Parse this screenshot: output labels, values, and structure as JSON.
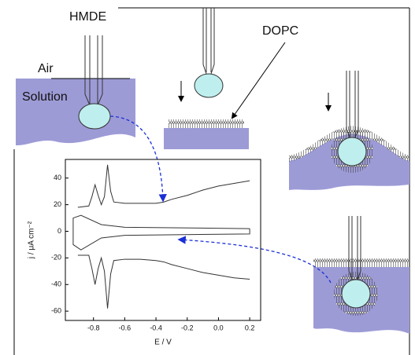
{
  "schematic": {
    "labels": [
      "HMDE",
      "Air",
      "Solution",
      "DOPC"
    ]
  },
  "chart_data": {
    "type": "line",
    "xlabel": "E / V",
    "ylabel": "j / μA cm⁻²",
    "xlim": [
      -0.98,
      0.27
    ],
    "ylim": [
      -67,
      54
    ],
    "xticks": [
      -0.8,
      -0.6,
      -0.4,
      -0.2,
      {
        "value": 0,
        "label": "0.0"
      },
      0.2
    ],
    "yticks": [
      40,
      20,
      0,
      -20,
      -40,
      -60
    ],
    "series": [
      {
        "color": "#333333",
        "x": [
          -0.9,
          -0.83,
          -0.81,
          -0.79,
          -0.77,
          -0.75,
          -0.73,
          -0.71,
          -0.69,
          -0.67,
          -0.6,
          -0.5,
          -0.4,
          -0.35,
          -0.3,
          -0.2,
          -0.1,
          0.0,
          0.1,
          0.2
        ],
        "values": [
          18,
          19,
          26,
          35,
          27,
          20,
          26,
          50,
          30,
          22,
          21,
          21,
          21,
          22,
          24,
          27,
          31,
          34,
          36,
          38
        ]
      },
      {
        "color": "#333333",
        "x": [
          -0.9,
          -0.83,
          -0.81,
          -0.79,
          -0.77,
          -0.75,
          -0.73,
          -0.71,
          -0.69,
          -0.67,
          -0.6,
          -0.5,
          -0.4,
          -0.35,
          -0.3,
          -0.2,
          -0.1,
          0.0,
          0.1,
          0.2
        ],
        "values": [
          -18,
          -18,
          -28,
          -40,
          -28,
          -20,
          -30,
          -58,
          -32,
          -22,
          -21,
          -21,
          -22,
          -23,
          -25,
          -28,
          -31,
          -33,
          -35,
          -36
        ]
      },
      {
        "color": "#333333",
        "x": [
          0.2,
          -0.6,
          -0.75,
          -0.88,
          -0.93,
          -0.93,
          -0.88,
          -0.75,
          -0.6,
          0.2,
          0.2
        ],
        "values": [
          2,
          3,
          5,
          12,
          10,
          -10,
          -14,
          -5,
          -3,
          -2,
          2
        ]
      }
    ]
  }
}
